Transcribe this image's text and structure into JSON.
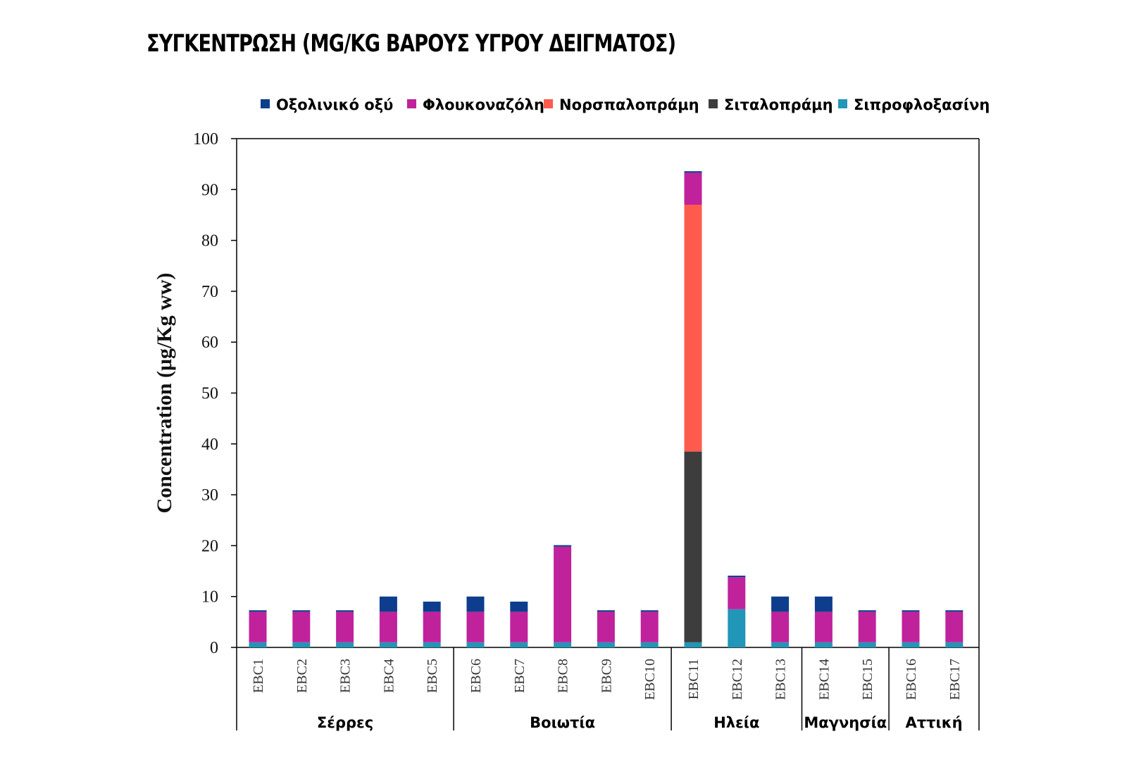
{
  "title": "ΣΥΓΚΕΝΤΡΩΣΗ (MG/KG ΒΑΡΟΥΣ ΥΓΡΟΥ ΔΕΙΓΜΑΤΟΣ)",
  "chart_data": {
    "type": "bar",
    "stacked": true,
    "title": "ΣΥΓΚΕΝΤΡΩΣΗ (MG/KG ΒΑΡΟΥΣ ΥΓΡΟΥ ΔΕΙΓΜΑΤΟΣ)",
    "xlabel": "",
    "ylabel": "Concentration  (μg/Kg ww)",
    "ylim": [
      0,
      100
    ],
    "yticks": [
      0,
      10,
      20,
      30,
      40,
      50,
      60,
      70,
      80,
      90,
      100
    ],
    "grid": false,
    "legend_position": "top",
    "categories": [
      "EBC1",
      "EBC2",
      "EBC3",
      "EBC4",
      "EBC5",
      "EBC6",
      "EBC7",
      "EBC8",
      "EBC9",
      "EBC10",
      "EBC11",
      "EBC12",
      "EBC13",
      "EBC14",
      "EBC15",
      "EBC16",
      "EBC17"
    ],
    "groups": [
      {
        "name": "Σέρρες",
        "start": 0,
        "end": 4
      },
      {
        "name": "Βοιωτία",
        "start": 5,
        "end": 9
      },
      {
        "name": "Ηλεία",
        "start": 10,
        "end": 12
      },
      {
        "name": "Μαγνησία",
        "start": 13,
        "end": 14
      },
      {
        "name": "Αττική",
        "start": 15,
        "end": 16
      }
    ],
    "series": [
      {
        "name": "Σιπροφλοξασίνη",
        "color": "#2196b8",
        "values": [
          1,
          1,
          1,
          1,
          1,
          1,
          1,
          1,
          1,
          1,
          1,
          7.5,
          1,
          1,
          1,
          1,
          1
        ]
      },
      {
        "name": "Σιταλοπράμη",
        "color": "#3d3d3d",
        "values": [
          0,
          0,
          0,
          0,
          0,
          0,
          0,
          0,
          0,
          0,
          37.5,
          0,
          0,
          0,
          0,
          0,
          0
        ]
      },
      {
        "name": "Νορσπαλοπράμη",
        "color": "#ff5a4e",
        "values": [
          0,
          0,
          0,
          0,
          0,
          0,
          0,
          0,
          0,
          0,
          48.5,
          0,
          0,
          0,
          0,
          0,
          0
        ]
      },
      {
        "name": "Φλουκοναζόλη",
        "color": "#c0229c",
        "values": [
          6,
          6,
          6,
          6,
          6,
          6,
          6,
          18.8,
          6,
          6,
          6.3,
          6.3,
          6,
          6,
          6,
          6,
          6
        ]
      },
      {
        "name": "Οξολινικό οξύ",
        "color": "#0d3d8c",
        "values": [
          0.3,
          0.3,
          0.3,
          3,
          2,
          3,
          2,
          0.3,
          0.3,
          0.3,
          0.3,
          0.3,
          3,
          3,
          0.3,
          0.3,
          0.3
        ]
      }
    ],
    "legend_order": [
      "Οξολινικό οξύ",
      "Φλουκοναζόλη",
      "Νορσπαλοπράμη",
      "Σιταλοπράμη",
      "Σιπροφλοξασίνη"
    ]
  }
}
